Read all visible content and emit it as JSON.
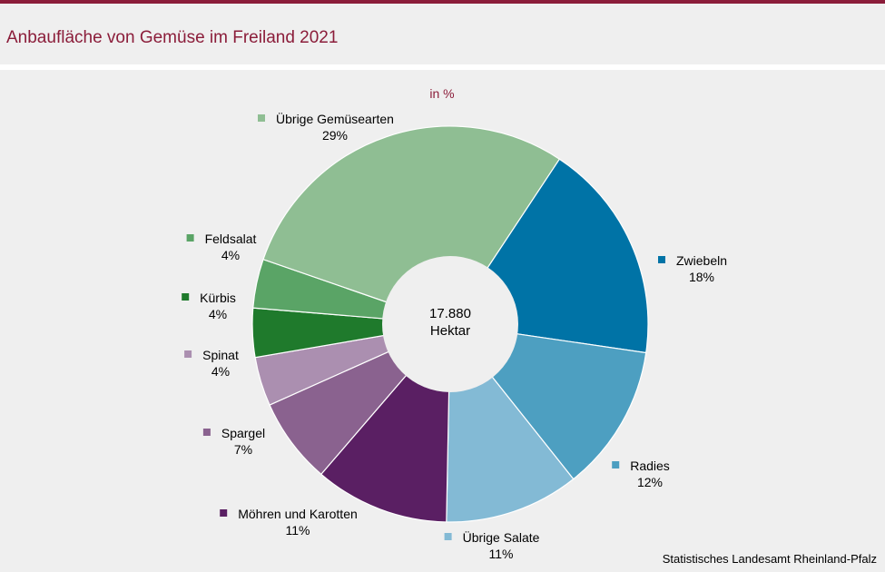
{
  "title": "Anbaufläche von Gemüse im Freiland 2021",
  "source": "Statistisches Landesamt Rheinland-Pfalz",
  "colors": {
    "accent": "#8b1d3a",
    "background": "#efefef"
  },
  "chart_data": {
    "type": "pie",
    "variant": "donut",
    "subtitle": "in %",
    "center_value": "17.880",
    "center_unit": "Hektar",
    "slices": [
      {
        "label": "Zwiebeln",
        "value": 18,
        "display": "18%",
        "color": "#0073a6"
      },
      {
        "label": "Radies",
        "value": 12,
        "display": "12%",
        "color": "#4d9fc1"
      },
      {
        "label": "Übrige Salate",
        "value": 11,
        "display": "11%",
        "color": "#83bad5"
      },
      {
        "label": "Möhren und Karotten",
        "value": 11,
        "display": "11%",
        "color": "#5a1f63"
      },
      {
        "label": "Spargel",
        "value": 7,
        "display": "7%",
        "color": "#8a628f"
      },
      {
        "label": "Spinat",
        "value": 4,
        "display": "4%",
        "color": "#ab8fb0"
      },
      {
        "label": "Kürbis",
        "value": 4,
        "display": "4%",
        "color": "#1f7a2c"
      },
      {
        "label": "Feldsalat",
        "value": 4,
        "display": "4%",
        "color": "#5aa466"
      },
      {
        "label": "Übrige Gemüsearten",
        "value": 29,
        "display": "29%",
        "color": "#8fbe93"
      }
    ]
  }
}
